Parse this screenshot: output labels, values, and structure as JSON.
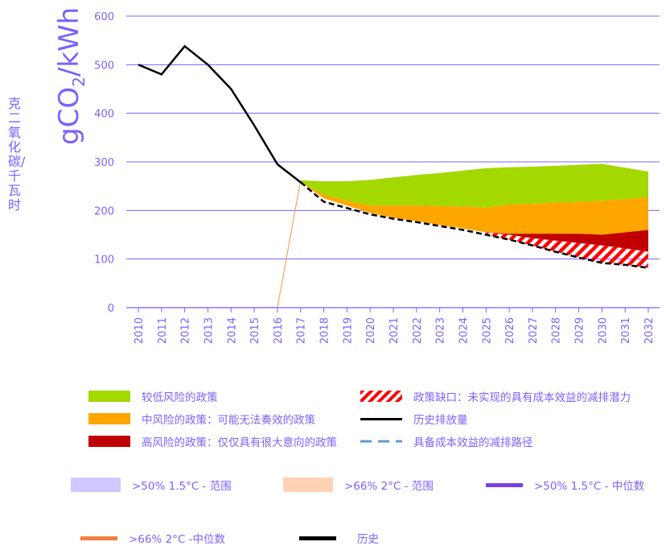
{
  "chart_data": {
    "type": "area",
    "ylabel_cn": "克二氧化碳/千瓦时",
    "ylabel_unit": "gCO",
    "ylabel_sub": "2",
    "ylabel_unit_tail": "/kWh",
    "ylim": [
      0,
      600
    ],
    "yticks": [
      "0",
      "100",
      "200",
      "300",
      "400",
      "500",
      "600"
    ],
    "x": [
      "2010",
      "2011",
      "2012",
      "2013",
      "2014",
      "2015",
      "2016",
      "2017",
      "2018",
      "2019",
      "2020",
      "2021",
      "2022",
      "2023",
      "2024",
      "2025",
      "2026",
      "2027",
      "2028",
      "2029",
      "2030",
      "2031",
      "2032"
    ],
    "grid": true,
    "series": [
      {
        "name": "历史排放量",
        "kind": "history",
        "color": "#000000",
        "x": [
          "2010",
          "2011",
          "2012",
          "2013",
          "2014",
          "2015",
          "2016",
          "2017"
        ],
        "values": [
          500,
          480,
          538,
          500,
          450,
          375,
          295,
          258
        ]
      },
      {
        "name": "具备成本效益的减排路径",
        "kind": "cost-effective",
        "color": "#000000",
        "x": [
          "2017",
          "2018",
          "2019",
          "2020",
          "2021",
          "2022",
          "2023",
          "2024",
          "2025",
          "2026",
          "2027",
          "2028",
          "2029",
          "2030",
          "2031",
          "2032"
        ],
        "values": [
          258,
          218,
          205,
          192,
          183,
          176,
          168,
          160,
          150,
          140,
          128,
          115,
          103,
          92,
          88,
          82
        ]
      },
      {
        "name": "较低风险的政策",
        "kind": "band-top",
        "color": "#a3d800",
        "x": [
          "2017",
          "2018",
          "2019",
          "2020",
          "2021",
          "2022",
          "2023",
          "2024",
          "2025",
          "2026",
          "2027",
          "2028",
          "2029",
          "2030",
          "2031",
          "2032"
        ],
        "values": [
          262,
          260,
          260,
          263,
          268,
          273,
          277,
          282,
          287,
          289,
          290,
          292,
          294,
          296,
          288,
          280
        ]
      },
      {
        "name": "中风险的政策：可能无法奏效的政策",
        "kind": "band-mid",
        "color": "#ffa500",
        "x": [
          "2017",
          "2018",
          "2019",
          "2020",
          "2021",
          "2022",
          "2023",
          "2024",
          "2025",
          "2026",
          "2027",
          "2028",
          "2029",
          "2030",
          "2031",
          "2032"
        ],
        "values": [
          258,
          232,
          220,
          210,
          210,
          210,
          209,
          208,
          206,
          212,
          214,
          216,
          218,
          220,
          223,
          227
        ]
      },
      {
        "name": "高风险的政策：仅仅具有很大意向的政策",
        "kind": "band-low",
        "color": "#c00000",
        "x": [
          "2017",
          "2018",
          "2019",
          "2020",
          "2021",
          "2022",
          "2023",
          "2024",
          "2025",
          "2026",
          "2027",
          "2028",
          "2029",
          "2030",
          "2031",
          "2032"
        ],
        "values": [
          258,
          225,
          210,
          195,
          185,
          178,
          170,
          163,
          155,
          152,
          152,
          152,
          152,
          150,
          155,
          160
        ]
      },
      {
        "name": "政策缺口：未实现的具有成本效益的减排潜力",
        "kind": "band-gap",
        "color": "#ff0000",
        "x": [
          "2025",
          "2026",
          "2027",
          "2028",
          "2029",
          "2030",
          "2031",
          "2032"
        ],
        "values": [
          155,
          150,
          143,
          138,
          133,
          128,
          122,
          115
        ]
      },
      {
        "name": ">66% 2°C -中位数",
        "kind": "orange-line",
        "color": "#f4a460",
        "x": [
          "2010",
          "2011",
          "2012",
          "2013",
          "2014",
          "2015",
          "2016",
          "2017"
        ],
        "values": [
          0,
          0,
          0,
          0,
          0,
          0,
          0,
          262
        ]
      }
    ]
  },
  "legend": {
    "row1_left": "较低风险的政策",
    "row1_right": "政策缺口：未实现的具有成本效益的减排潜力",
    "row2_left": "中风险的政策：可能无法奏效的政策",
    "row2_right": "历史排放量",
    "row3_left": "高风险的政策：仅仅具有很大意向的政策",
    "row3_right": "具备成本效益的减排路径",
    "row4_a": ">50% 1.5°C - 范围",
    "row4_b": ">66% 2°C - 范围",
    "row4_c": ">50% 1.5°C - 中位数",
    "row5_a": ">66% 2°C -中位数",
    "row5_b": "历史"
  },
  "colors": {
    "axis_text": "#7b61ff",
    "grid": "#7b61ff",
    "low_risk": "#a3d800",
    "mid_risk": "#ffa500",
    "high_risk": "#c00000",
    "gap": "#ff0000",
    "history": "#000000",
    "cost_path_legend": "#5b9bd5",
    "range_15": "#d2c8ff",
    "range_2": "#ffd2b4",
    "median_15": "#7b3fe4",
    "median_2": "#f08040"
  }
}
